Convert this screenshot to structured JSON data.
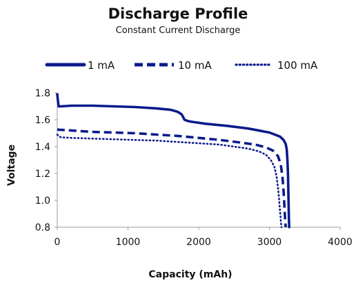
{
  "chart_data": {
    "type": "line",
    "title": "Discharge Profile",
    "subtitle": "Constant Current Discharge",
    "xlabel": "Capacity (mAh)",
    "ylabel": "Voltage",
    "xlim": [
      0,
      4000
    ],
    "ylim": [
      0.8,
      1.8
    ],
    "xticks": [
      "0",
      "1000",
      "2000",
      "3000",
      "4000"
    ],
    "yticks": [
      "0.8",
      "1.0",
      "1.2",
      "1.4",
      "1.6",
      "1.8"
    ],
    "grid": false,
    "legend_position": "top",
    "line_color": "#0a1a8c",
    "series": [
      {
        "name": "1 mA",
        "style": "solid",
        "x": [
          0,
          8,
          20,
          50,
          200,
          500,
          800,
          1100,
          1400,
          1600,
          1700,
          1760,
          1800,
          1850,
          1900,
          2100,
          2400,
          2700,
          3000,
          3150,
          3200,
          3230,
          3245,
          3255,
          3262,
          3268,
          3272,
          3276,
          3280
        ],
        "y": [
          1.79,
          1.75,
          1.7,
          1.7,
          1.705,
          1.705,
          1.7,
          1.695,
          1.685,
          1.675,
          1.66,
          1.64,
          1.6,
          1.59,
          1.585,
          1.57,
          1.555,
          1.535,
          1.505,
          1.475,
          1.45,
          1.42,
          1.38,
          1.3,
          1.2,
          1.05,
          0.95,
          0.86,
          0.8
        ]
      },
      {
        "name": "10 mA",
        "style": "dashed",
        "x": [
          0,
          20,
          50,
          200,
          500,
          800,
          1100,
          1400,
          1700,
          2000,
          2300,
          2600,
          2800,
          2950,
          3050,
          3120,
          3160,
          3185,
          3200,
          3210,
          3218,
          3224,
          3230
        ],
        "y": [
          1.53,
          1.525,
          1.525,
          1.52,
          1.51,
          1.505,
          1.5,
          1.49,
          1.48,
          1.465,
          1.45,
          1.43,
          1.415,
          1.395,
          1.37,
          1.33,
          1.27,
          1.17,
          1.07,
          0.98,
          0.9,
          0.84,
          0.8
        ]
      },
      {
        "name": "100 mA",
        "style": "dotted",
        "x": [
          0,
          20,
          50,
          200,
          500,
          800,
          1100,
          1400,
          1700,
          2000,
          2300,
          2500,
          2700,
          2850,
          2950,
          3020,
          3070,
          3100,
          3120,
          3135,
          3145,
          3155,
          3162,
          3170
        ],
        "y": [
          1.49,
          1.48,
          1.47,
          1.465,
          1.46,
          1.455,
          1.45,
          1.445,
          1.435,
          1.425,
          1.415,
          1.4,
          1.385,
          1.365,
          1.34,
          1.3,
          1.25,
          1.18,
          1.1,
          1.02,
          0.95,
          0.89,
          0.84,
          0.8
        ]
      }
    ]
  }
}
